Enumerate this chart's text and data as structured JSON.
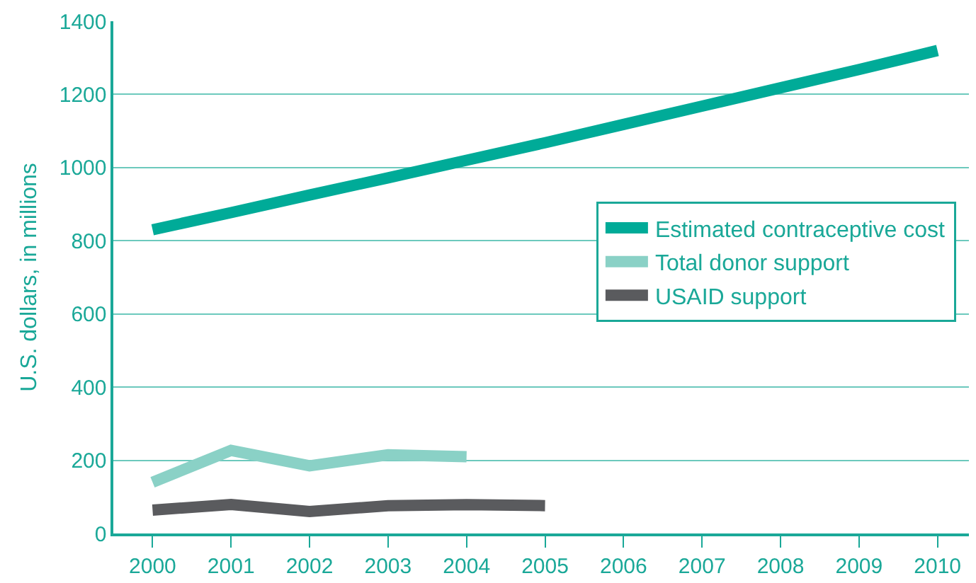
{
  "chart_data": {
    "type": "line",
    "ylabel": "U.S. dollars, in millions",
    "x": [
      2000,
      2001,
      2002,
      2003,
      2004,
      2005,
      2006,
      2007,
      2008,
      2009,
      2010
    ],
    "series": [
      {
        "name": "Estimated contraceptive cost",
        "color": "#00ab98",
        "values": [
          830,
          877,
          925,
          972,
          1020,
          1068,
          1118,
          1168,
          1218,
          1268,
          1320
        ]
      },
      {
        "name": "Total donor support",
        "color": "#8ad1c6",
        "values": [
          140,
          227,
          185,
          215,
          210,
          null,
          null,
          null,
          null,
          null,
          null
        ]
      },
      {
        "name": "USAID support",
        "color": "#5a5b5e",
        "values": [
          64,
          79,
          60,
          76,
          79,
          76,
          null,
          null,
          null,
          null,
          null
        ]
      }
    ],
    "xlim": [
      1999.5,
      2010.4
    ],
    "xticks": [
      2000,
      2001,
      2002,
      2003,
      2004,
      2005,
      2006,
      2007,
      2008,
      2009,
      2010
    ],
    "ylim": [
      0,
      1400
    ],
    "yticks": [
      0,
      200,
      400,
      600,
      800,
      1000,
      1200,
      1400
    ],
    "grid": "y",
    "legend": "right",
    "line_style": "solid",
    "marker": "none"
  }
}
